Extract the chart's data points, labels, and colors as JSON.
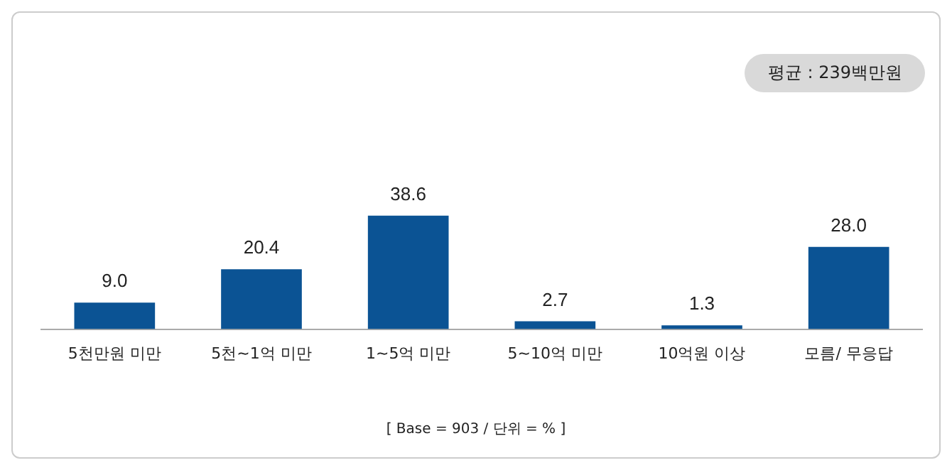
{
  "chart_data": {
    "type": "bar",
    "categories": [
      "5천만원 미만",
      "5천~1억 미만",
      "1~5억 미만",
      "5~10억 미만",
      "10억원 이상",
      "모름/ 무응답"
    ],
    "values": [
      9.0,
      20.4,
      38.6,
      2.7,
      1.3,
      28.0
    ],
    "value_labels": [
      "9.0",
      "20.4",
      "38.6",
      "2.7",
      "1.3",
      "28.0"
    ],
    "color": "#0b5394",
    "tick_labels": "x",
    "grid": false,
    "legend": false,
    "annotations": [
      "평균 : 239백만원",
      "[ Base = 903 / 단위 = % ]"
    ]
  }
}
